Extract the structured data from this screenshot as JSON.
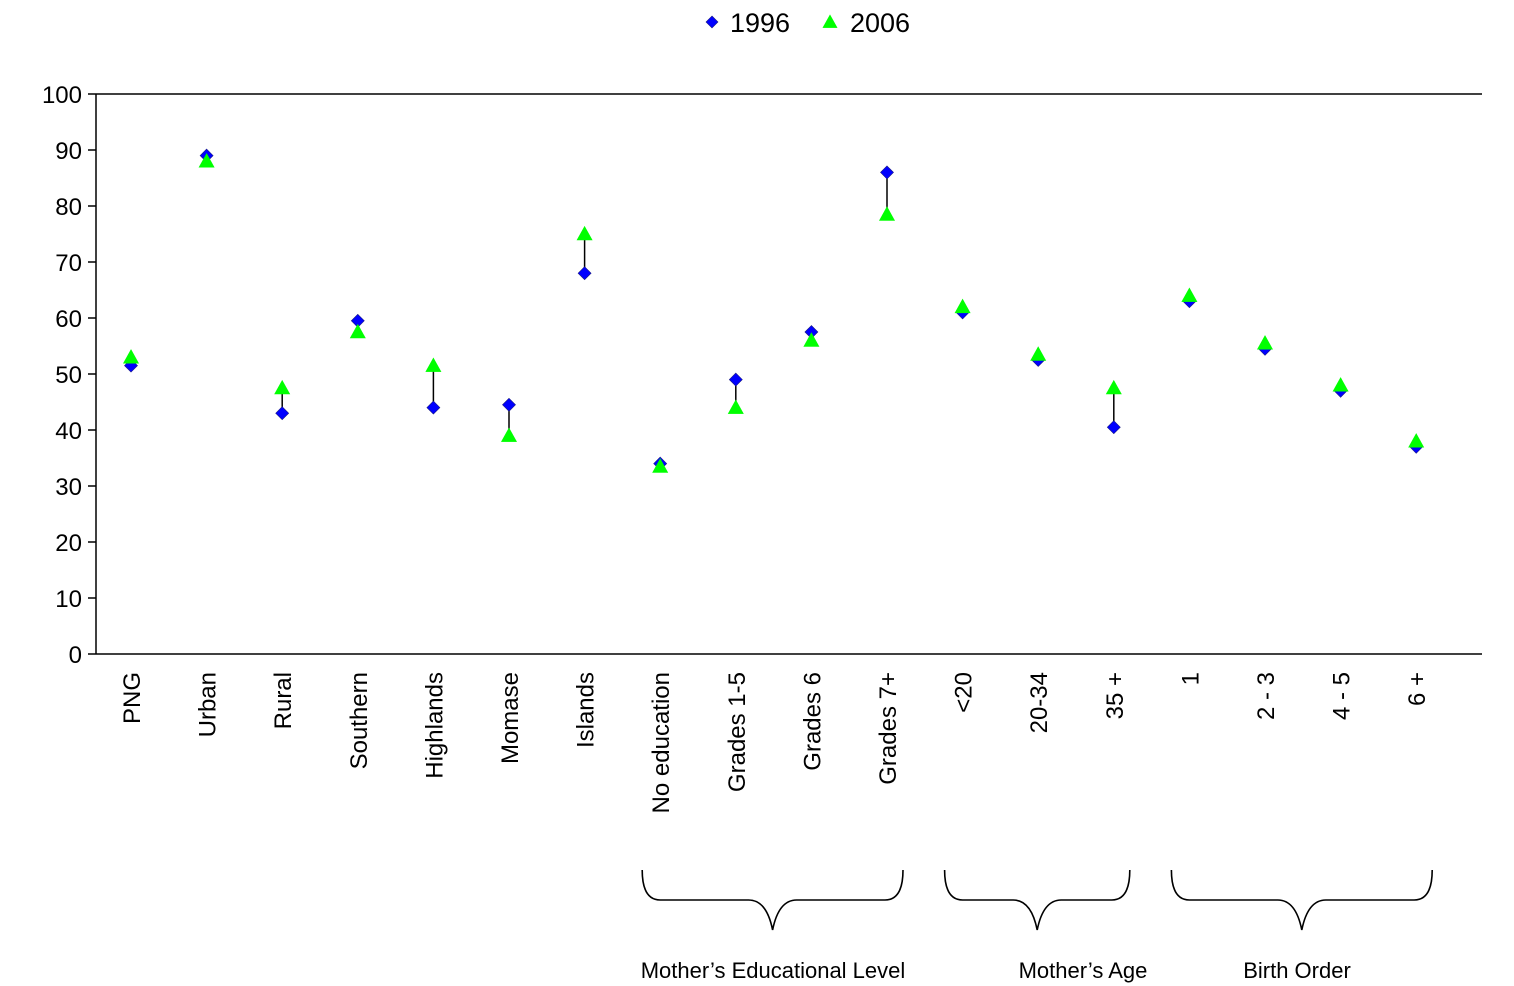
{
  "chart_data": {
    "type": "scatter",
    "categories": [
      "PNG",
      "Urban",
      "Rural",
      "Southern",
      "Highlands",
      "Momase",
      "Islands",
      "No education",
      "Grades 1-5",
      "Grades 6",
      "Grades 7+",
      "<20",
      "20-34",
      "35 +",
      "1",
      "2 - 3",
      "4 - 5",
      "6 +"
    ],
    "series": [
      {
        "name": "1996",
        "color": "#0000ff",
        "marker": "diamond",
        "values": [
          51.5,
          89,
          43,
          59.5,
          44,
          44.5,
          68,
          34,
          49,
          57.5,
          86,
          61,
          52.5,
          40.5,
          63,
          54.5,
          47,
          37
        ]
      },
      {
        "name": "2006",
        "color": "#00ff00",
        "marker": "triangle",
        "values": [
          53,
          88,
          47.5,
          57.5,
          51.5,
          39,
          75,
          33.5,
          44,
          56,
          78.5,
          62,
          53.5,
          47.5,
          64,
          55.5,
          48,
          38
        ]
      }
    ],
    "ylim": [
      0,
      100
    ],
    "yticks": [
      0,
      10,
      20,
      30,
      40,
      50,
      60,
      70,
      80,
      90,
      100
    ],
    "legend": "top-center",
    "groups": [
      {
        "label": "Mother’s Educational Level",
        "from": 7,
        "to": 10
      },
      {
        "label": "Mother’s Age",
        "from": 11,
        "to": 13
      },
      {
        "label": "Birth Order",
        "from": 14,
        "to": 17
      }
    ]
  }
}
